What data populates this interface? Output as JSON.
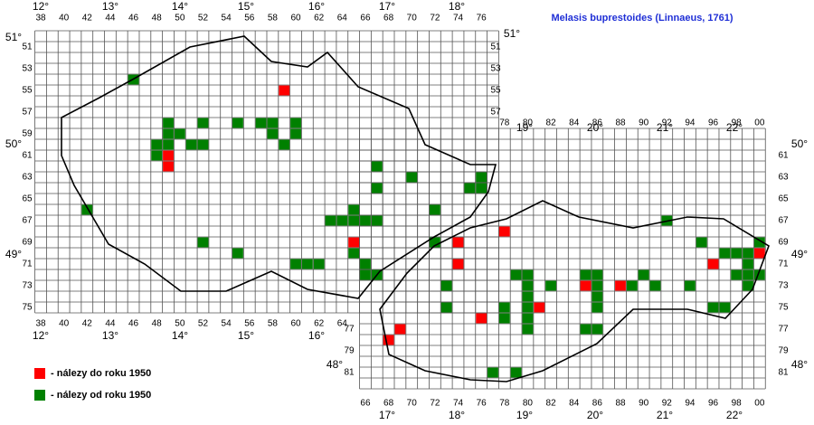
{
  "title": "Melasis buprestoides (Linnaeus, 1761)",
  "legend": [
    "- nálezy do roku 1950",
    "- nálezy od roku 1950"
  ],
  "column_labels": {
    "czech_top": [
      "38",
      "40",
      "42",
      "44",
      "46",
      "48",
      "50",
      "52",
      "54",
      "56",
      "58",
      "60",
      "62",
      "64",
      "66",
      "68",
      "70",
      "72",
      "74",
      "76"
    ],
    "czech_bottom": [
      "38",
      "40",
      "42",
      "44",
      "46",
      "48",
      "50",
      "52",
      "54",
      "56",
      "58",
      "60",
      "62",
      "64"
    ],
    "slovak_top": [
      "78",
      "80",
      "82",
      "84",
      "86",
      "88",
      "90",
      "92",
      "94",
      "96",
      "98",
      "00"
    ],
    "slovak_bottom": [
      "66",
      "68",
      "70",
      "72",
      "74",
      "76",
      "78",
      "80",
      "82",
      "84",
      "86",
      "88",
      "90",
      "92",
      "94",
      "96",
      "98",
      "00"
    ]
  },
  "row_labels": {
    "czech_left": [
      "51",
      "53",
      "55",
      "57",
      "59",
      "61",
      "63",
      "65",
      "67",
      "69",
      "71",
      "73",
      "75"
    ],
    "czech_right": [
      "51",
      "53",
      "55",
      "57"
    ],
    "slovak_right": [
      "61",
      "63",
      "65",
      "67",
      "69",
      "71",
      "73",
      "75",
      "77",
      "79",
      "81"
    ],
    "slovak_left": [
      "77",
      "79",
      "81"
    ]
  },
  "degree_labels": {
    "czech_top": [
      "12°",
      "13°",
      "14°",
      "15°",
      "16°",
      "17°",
      "18°"
    ],
    "czech_bottom": [
      "12°",
      "13°",
      "14°",
      "15°",
      "16°"
    ],
    "slovak_top": [
      "19°",
      "20°",
      "21°",
      "22°"
    ],
    "slovak_bottom": [
      "17°",
      "18°",
      "19°",
      "20°",
      "21°",
      "22°"
    ],
    "lat_left": [
      "51°",
      "50°",
      "49°",
      "48°"
    ],
    "lat_right": [
      "51°",
      "50°",
      "49°",
      "48°"
    ]
  },
  "records": {
    "before_1950": [
      [
        59,
        55
      ],
      [
        49,
        61
      ],
      [
        49,
        62
      ],
      [
        65,
        69
      ],
      [
        74,
        69
      ],
      [
        74,
        71
      ],
      [
        78,
        68
      ],
      [
        76,
        76
      ],
      [
        69,
        77
      ],
      [
        68,
        78
      ],
      [
        81,
        75
      ],
      [
        85,
        73
      ],
      [
        88,
        73
      ],
      [
        96,
        71
      ],
      [
        100,
        70
      ]
    ],
    "since_1950": [
      [
        46,
        54
      ],
      [
        49,
        58
      ],
      [
        49,
        59
      ],
      [
        50,
        59
      ],
      [
        48,
        60
      ],
      [
        49,
        60
      ],
      [
        51,
        60
      ],
      [
        52,
        60
      ],
      [
        52,
        58
      ],
      [
        48,
        61
      ],
      [
        55,
        58
      ],
      [
        57,
        58
      ],
      [
        58,
        58
      ],
      [
        58,
        59
      ],
      [
        60,
        58
      ],
      [
        60,
        59
      ],
      [
        59,
        60
      ],
      [
        67,
        62
      ],
      [
        67,
        64
      ],
      [
        70,
        63
      ],
      [
        76,
        63
      ],
      [
        76,
        64
      ],
      [
        75,
        64
      ],
      [
        72,
        66
      ],
      [
        63,
        67
      ],
      [
        64,
        67
      ],
      [
        65,
        67
      ],
      [
        66,
        67
      ],
      [
        67,
        67
      ],
      [
        65,
        66
      ],
      [
        52,
        69
      ],
      [
        42,
        66
      ],
      [
        55,
        70
      ],
      [
        60,
        71
      ],
      [
        61,
        71
      ],
      [
        62,
        71
      ],
      [
        66,
        71
      ],
      [
        66,
        72
      ],
      [
        67,
        72
      ],
      [
        65,
        70
      ],
      [
        72,
        69
      ],
      [
        73,
        73
      ],
      [
        73,
        75
      ],
      [
        79,
        72
      ],
      [
        80,
        72
      ],
      [
        80,
        73
      ],
      [
        80,
        74
      ],
      [
        80,
        75
      ],
      [
        80,
        76
      ],
      [
        80,
        77
      ],
      [
        78,
        75
      ],
      [
        78,
        76
      ],
      [
        82,
        73
      ],
      [
        77,
        81
      ],
      [
        79,
        81
      ],
      [
        85,
        72
      ],
      [
        86,
        72
      ],
      [
        86,
        73
      ],
      [
        86,
        74
      ],
      [
        86,
        75
      ],
      [
        85,
        77
      ],
      [
        86,
        77
      ],
      [
        89,
        73
      ],
      [
        90,
        72
      ],
      [
        91,
        73
      ],
      [
        92,
        67
      ],
      [
        94,
        73
      ],
      [
        95,
        69
      ],
      [
        97,
        70
      ],
      [
        98,
        70
      ],
      [
        99,
        70
      ],
      [
        98,
        72
      ],
      [
        99,
        71
      ],
      [
        99,
        72
      ],
      [
        99,
        73
      ],
      [
        100,
        69
      ],
      [
        100,
        72
      ],
      [
        97,
        75
      ],
      [
        96,
        75
      ]
    ]
  }
}
